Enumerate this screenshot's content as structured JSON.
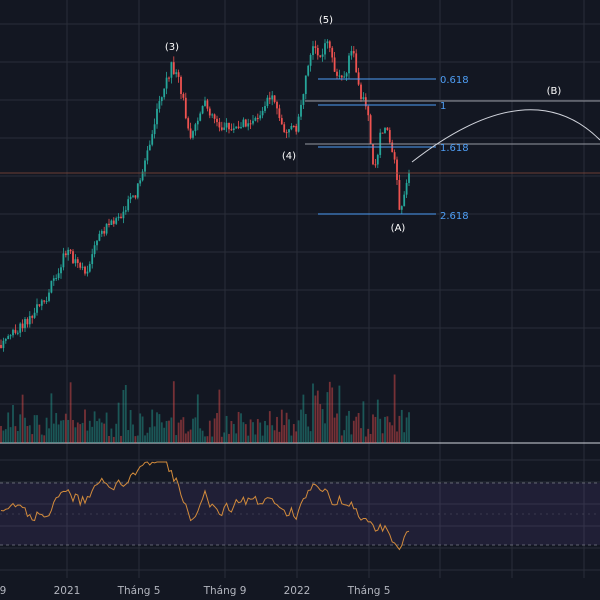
{
  "theme": {
    "background": "#131722",
    "grid": "#2a2e39",
    "up": "#26a69a",
    "down": "#ef5350",
    "fib": "#4e9ef5",
    "fib_line_gray": "#9598a1",
    "rsi_line": "#d28b3c",
    "rsi_band": "#7e57c2",
    "price_line": "#8a4b3b"
  },
  "chart_data": [
    {
      "type": "candlestick",
      "title": "",
      "x_tick_labels": [
        "9",
        "2021",
        "Tháng 5",
        "Tháng 9",
        "2022",
        "Tháng 5"
      ],
      "wave_labels": [
        "(3)",
        "(4)",
        "(5)",
        "(A)",
        "(B)"
      ],
      "fib_levels": [
        {
          "label": "0.618",
          "value": 0.618
        },
        {
          "label": "1",
          "value": 1
        },
        {
          "label": "1.618",
          "value": 1.618
        },
        {
          "label": "2.618",
          "value": 2.618
        }
      ],
      "grid": true,
      "legend": "none"
    },
    {
      "type": "bar",
      "title": "",
      "note_volume": "volume",
      "grid": true
    },
    {
      "type": "line",
      "title": "",
      "note_rsi": "oscillator",
      "ylim": [
        0,
        100
      ],
      "bands": [
        30,
        70
      ],
      "grid": true
    }
  ]
}
